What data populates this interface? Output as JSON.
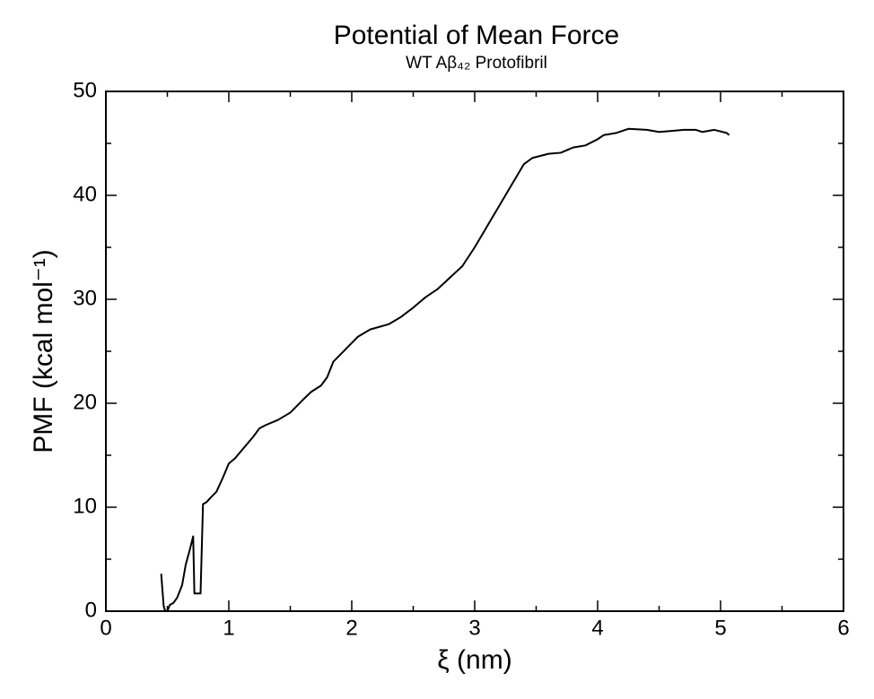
{
  "chart_data": {
    "type": "line",
    "title": "Potential of Mean Force",
    "subtitle": "WT Aβ₄₂ Protofibril",
    "x_label": "ξ (nm)",
    "y_label": "PMF (kcal mol⁻¹)",
    "xlim": [
      0,
      6
    ],
    "xticks": [
      0,
      1,
      2,
      3,
      4,
      5,
      6
    ],
    "ylim": [
      0,
      50
    ],
    "yticks": [
      0,
      10,
      20,
      30,
      40,
      50
    ],
    "series": [
      {
        "name": "PMF",
        "color": "#000000",
        "x": [
          0.45,
          0.47,
          0.48,
          0.5,
          0.52,
          0.55,
          0.58,
          0.62,
          0.65,
          0.68,
          0.71,
          0.72,
          0.77,
          0.78,
          0.79,
          0.82,
          0.85,
          0.9,
          0.95,
          1.0,
          1.05,
          1.1,
          1.2,
          1.25,
          1.3,
          1.4,
          1.5,
          1.6,
          1.67,
          1.75,
          1.8,
          1.85,
          1.9,
          2.0,
          2.05,
          2.15,
          2.3,
          2.4,
          2.5,
          2.6,
          2.7,
          2.8,
          2.9,
          3.0,
          3.1,
          3.2,
          3.3,
          3.4,
          3.47,
          3.6,
          3.7,
          3.8,
          3.9,
          4.0,
          4.05,
          4.15,
          4.25,
          4.4,
          4.5,
          4.6,
          4.7,
          4.8,
          4.85,
          4.95,
          5.05,
          5.07
        ],
        "values": [
          3.6,
          0.5,
          0.1,
          0.0,
          0.6,
          0.8,
          1.3,
          2.5,
          4.5,
          5.8,
          7.2,
          1.7,
          1.7,
          6.0,
          10.3,
          10.5,
          10.9,
          11.5,
          12.8,
          14.2,
          14.7,
          15.4,
          16.8,
          17.6,
          17.9,
          18.4,
          19.1,
          20.3,
          21.1,
          21.7,
          22.5,
          24.0,
          24.6,
          25.8,
          26.4,
          27.1,
          27.6,
          28.3,
          29.2,
          30.2,
          31.0,
          32.1,
          33.2,
          35.0,
          37.0,
          39.0,
          41.0,
          43.0,
          43.6,
          44.0,
          44.1,
          44.6,
          44.8,
          45.4,
          45.8,
          46.0,
          46.4,
          46.3,
          46.1,
          46.2,
          46.3,
          46.3,
          46.1,
          46.3,
          46.0,
          45.8
        ]
      }
    ]
  }
}
